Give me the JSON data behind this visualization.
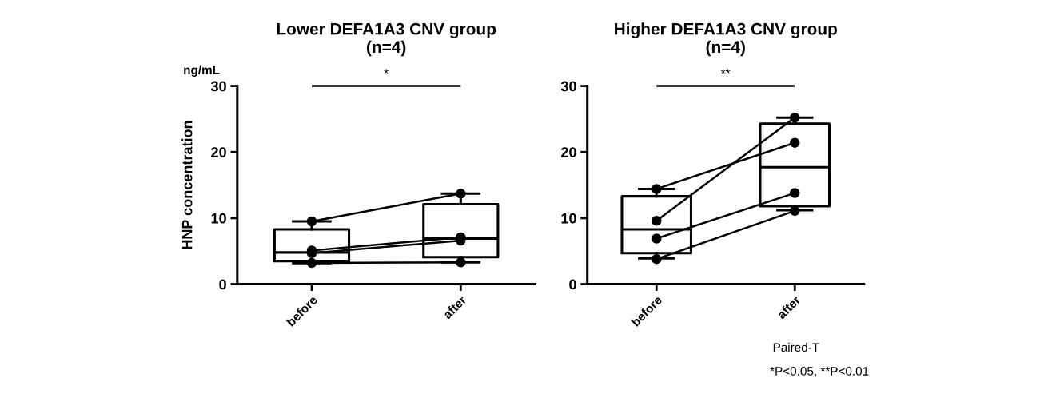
{
  "chart_data": [
    {
      "type": "box",
      "title": "Lower DEFA1A3 CNV group\n(n=4)",
      "ylabel": "HNP concentration",
      "categories": [
        "before",
        "after"
      ],
      "ylim": [
        0,
        30
      ],
      "yticks": [
        0,
        10,
        20,
        30
      ],
      "grid": false,
      "legend": false,
      "marker": "circle",
      "boxes": [
        {
          "low": 3.2,
          "q1": 3.5,
          "median": 4.8,
          "q3": 8.3,
          "high": 9.5
        },
        {
          "low": 3.3,
          "q1": 4.1,
          "median": 6.9,
          "q3": 12.1,
          "high": 13.7
        }
      ],
      "series": [
        {
          "type": "line",
          "color": "#000000",
          "values": [
            9.5,
            13.7
          ]
        },
        {
          "type": "line",
          "color": "#000000",
          "values": [
            5.1,
            7.1
          ]
        },
        {
          "type": "line",
          "color": "#000000",
          "values": [
            4.7,
            6.6
          ]
        },
        {
          "type": "line",
          "color": "#000000",
          "values": [
            3.2,
            3.3
          ]
        }
      ],
      "annotations": [
        "ng/mL",
        "*"
      ]
    },
    {
      "type": "box",
      "title": "Higher DEFA1A3 CNV group\n(n=4)",
      "categories": [
        "before",
        "after"
      ],
      "ylim": [
        0,
        30
      ],
      "yticks": [
        0,
        10,
        20,
        30
      ],
      "grid": false,
      "legend": false,
      "marker": "circle",
      "boxes": [
        {
          "low": 3.9,
          "q1": 4.7,
          "median": 8.3,
          "q3": 13.3,
          "high": 14.4
        },
        {
          "low": 11.2,
          "q1": 11.8,
          "median": 17.7,
          "q3": 24.3,
          "high": 25.2
        }
      ],
      "series": [
        {
          "type": "line",
          "color": "#000000",
          "values": [
            9.6,
            25.2
          ]
        },
        {
          "type": "line",
          "color": "#000000",
          "values": [
            14.4,
            21.4
          ]
        },
        {
          "type": "line",
          "color": "#000000",
          "values": [
            6.9,
            13.8
          ]
        },
        {
          "type": "line",
          "color": "#000000",
          "values": [
            3.8,
            11.1
          ]
        }
      ],
      "annotations": [
        "**",
        "Paired-T",
        "*P<0.05, **P<0.01"
      ]
    }
  ]
}
